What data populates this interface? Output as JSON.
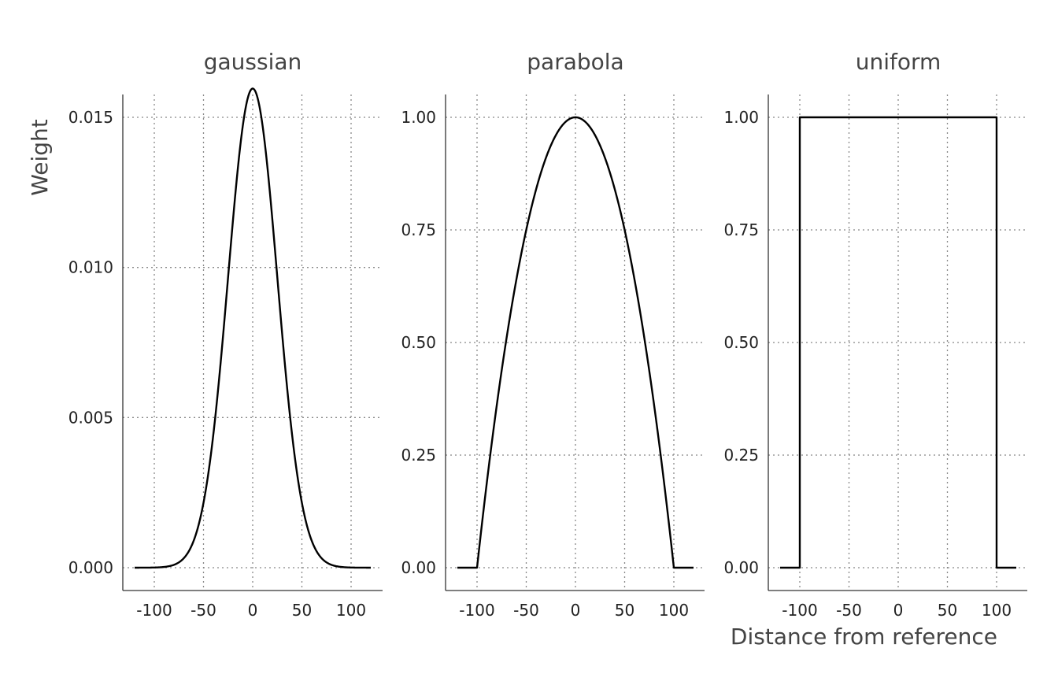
{
  "chart_data": {
    "type": "line",
    "xlabel": "Distance from reference",
    "ylabel": "Weight",
    "x_ticks": [
      -100,
      -50,
      0,
      50,
      100
    ],
    "x_tick_labels": [
      "-100",
      "-50",
      "0",
      "50",
      "100"
    ],
    "xlim": [
      -120,
      120
    ],
    "grid": "dotted",
    "color": "#000000",
    "panels": [
      {
        "title": "gaussian",
        "kernel": "gaussian",
        "sigma": 25,
        "ylim": [
          0,
          0.016
        ],
        "y_ticks": [
          0,
          0.005,
          0.01,
          0.015
        ],
        "y_tick_labels": [
          "0.000",
          "0.005",
          "0.010",
          "0.015"
        ]
      },
      {
        "title": "parabola",
        "kernel": "parabola",
        "bandwidth": 100,
        "ylim": [
          0,
          1
        ],
        "y_ticks": [
          0,
          0.25,
          0.5,
          0.75,
          1
        ],
        "y_tick_labels": [
          "0.00",
          "0.25",
          "0.50",
          "0.75",
          "1.00"
        ]
      },
      {
        "title": "uniform",
        "kernel": "uniform",
        "bandwidth": 100,
        "ylim": [
          0,
          1
        ],
        "y_ticks": [
          0,
          0.25,
          0.5,
          0.75,
          1
        ],
        "y_tick_labels": [
          "0.00",
          "0.25",
          "0.50",
          "0.75",
          "1.00"
        ]
      }
    ]
  }
}
